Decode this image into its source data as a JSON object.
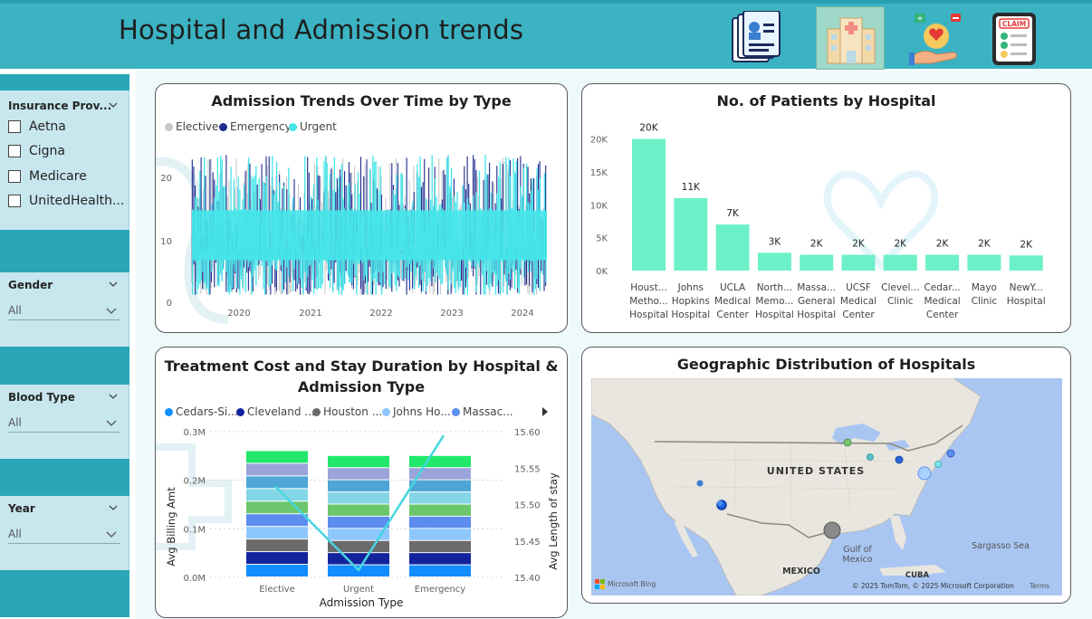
{
  "header": {
    "title": "Hospital and Admission trends",
    "icons": [
      "patient-record-icon",
      "hospital-building-icon",
      "healthcare-hand-icon",
      "insurance-claim-icon"
    ],
    "claim_label": "CLAIM"
  },
  "slicers": {
    "insurance": {
      "title": "Insurance Prov...",
      "options": [
        "Aetna",
        "Cigna",
        "Medicare",
        "UnitedHealth..."
      ]
    },
    "gender": {
      "title": "Gender",
      "value": "All"
    },
    "blood_type": {
      "title": "Blood Type",
      "value": "All"
    },
    "year": {
      "title": "Year",
      "value": "All"
    }
  },
  "charts": {
    "admission_trends": {
      "title": "Admission Trends Over Time by Type",
      "legend": [
        {
          "name": "Elective",
          "color": "#c8c8c8"
        },
        {
          "name": "Emergency",
          "color": "#1d2a8f"
        },
        {
          "name": "Urgent",
          "color": "#45e6ea"
        }
      ],
      "y_ticks": [
        "0",
        "10",
        "20"
      ],
      "x_ticks": [
        "2020",
        "2021",
        "2022",
        "2023",
        "2024"
      ]
    },
    "patients_by_hospital": {
      "title": "No. of Patients by Hospital",
      "y_ticks": [
        "0K",
        "5K",
        "10K",
        "15K",
        "20K"
      ],
      "bar_color": "#6cf0c8",
      "chart_data": {
        "type": "bar",
        "categories": [
          [
            "Houst...",
            "Metho...",
            "Hospital"
          ],
          [
            "Johns",
            "Hopkins",
            "Hospital"
          ],
          [
            "UCLA",
            "Medical",
            "Center"
          ],
          [
            "North...",
            "Memo...",
            "Hospital"
          ],
          [
            "Massa...",
            "General",
            "Hospital"
          ],
          [
            "UCSF",
            "Medical",
            "Center"
          ],
          [
            "Clevel...",
            "Clinic"
          ],
          [
            "Cedar...",
            "Medical",
            "Center"
          ],
          [
            "Mayo",
            "Clinic"
          ],
          [
            "NewY...",
            "Hospital"
          ]
        ],
        "values": [
          20000,
          11000,
          7000,
          2700,
          2400,
          2400,
          2400,
          2400,
          2400,
          2300
        ],
        "labels": [
          "20K",
          "11K",
          "7K",
          "3K",
          "2K",
          "2K",
          "2K",
          "2K",
          "2K",
          "2K"
        ],
        "ylim": [
          0,
          22000
        ]
      }
    },
    "cost_stay": {
      "title_line1": "Treatment Cost and Stay Duration by Hospital &",
      "title_line2": "Admission Type",
      "legend": [
        {
          "name": "Cedars-Si...",
          "color": "#118dff"
        },
        {
          "name": "Cleveland ...",
          "color": "#12239e"
        },
        {
          "name": "Houston ...",
          "color": "#6b6b6b"
        },
        {
          "name": "Johns Ho...",
          "color": "#8ec7ff"
        },
        {
          "name": "Massac...",
          "color": "#5b8def"
        }
      ],
      "y_left_label": "Avg Billing Amt",
      "y_right_label": "Avg Length of stay",
      "x_label": "Admission Type",
      "y_left_ticks": [
        "0.0M",
        "0.1M",
        "0.2M",
        "0.3M"
      ],
      "y_right_ticks": [
        "15.40",
        "15.45",
        "15.50",
        "15.55",
        "15.60"
      ],
      "chart_data": {
        "type": "bar",
        "categories": [
          "Elective",
          "Urgent",
          "Emergency"
        ],
        "stack_colors": [
          "#118dff",
          "#12239e",
          "#6b6b6b",
          "#8ec7ff",
          "#5b8def",
          "#6cc76c",
          "#84d6e6",
          "#4fa6d6",
          "#9aa4d8",
          "#21e86a"
        ],
        "stack_values": [
          [
            0.026,
            0.026,
            0.026,
            0.026,
            0.026,
            0.026,
            0.026,
            0.026,
            0.026,
            0.026
          ],
          [
            0.025,
            0.025,
            0.025,
            0.025,
            0.025,
            0.025,
            0.025,
            0.025,
            0.025,
            0.025
          ],
          [
            0.025,
            0.025,
            0.025,
            0.025,
            0.025,
            0.025,
            0.025,
            0.025,
            0.025,
            0.025
          ]
        ],
        "line_values": [
          15.525,
          15.41,
          15.595
        ],
        "line_color": "#45d6e0",
        "ylim_left": [
          0,
          0.3
        ],
        "ylim_right": [
          15.4,
          15.6
        ]
      }
    },
    "geo": {
      "title": "Geographic Distribution of Hospitals",
      "labels": {
        "us": "UNITED STATES",
        "mexico": "MEXICO",
        "gulf": "Gulf of\nMexico",
        "sargasso": "Sargasso Sea",
        "cuba": "CUBA"
      },
      "attribution": "© 2025 TomTom, © 2025 Microsoft Corporation",
      "terms": "Terms",
      "bing": "Microsoft Bing"
    }
  }
}
